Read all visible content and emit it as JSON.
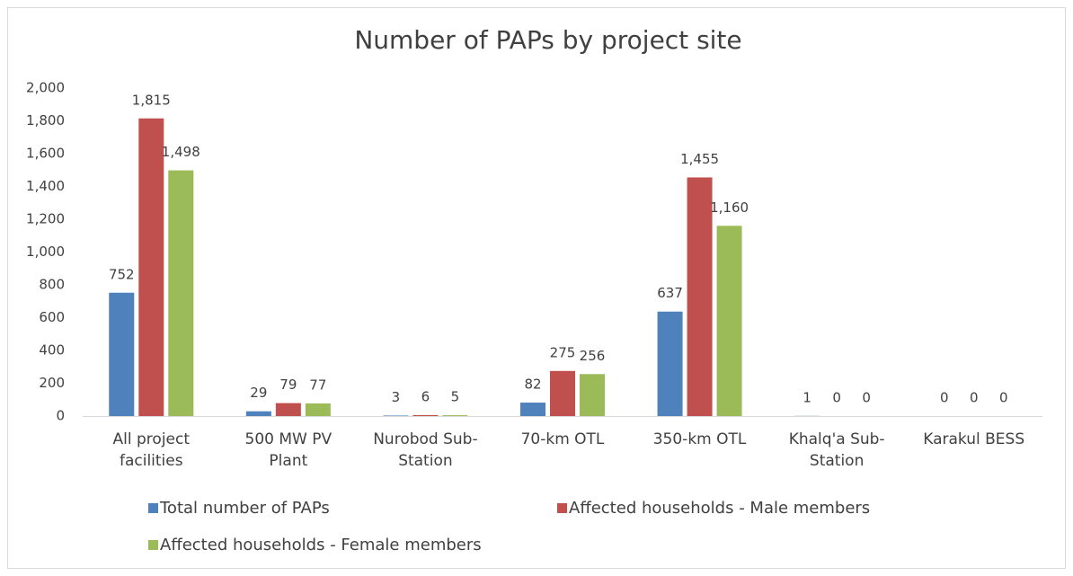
{
  "chart_data": {
    "type": "bar",
    "title": "Number of PAPs by project site",
    "categories": [
      "All project facilities",
      "500 MW PV Plant",
      "Nurobod Sub-Station",
      "70-km OTL",
      "350-km OTL",
      "Khalq'a Sub-Station",
      "Karakul BESS"
    ],
    "series": [
      {
        "name": "Total number of PAPs",
        "color": "#4f81bd",
        "values": [
          752,
          29,
          3,
          82,
          637,
          1,
          0
        ],
        "value_labels": [
          "752",
          "29",
          "3",
          "82",
          "637",
          "1",
          "0"
        ]
      },
      {
        "name": "Affected households - Male members",
        "color": "#c0504d",
        "values": [
          1815,
          79,
          6,
          275,
          1455,
          0,
          0
        ],
        "value_labels": [
          "1,815",
          "79",
          "6",
          "275",
          "1,455",
          "0",
          "0"
        ]
      },
      {
        "name": "Affected households - Female members",
        "color": "#9bbb59",
        "values": [
          1498,
          77,
          5,
          256,
          1160,
          0,
          0
        ],
        "value_labels": [
          "1,498",
          "77",
          "5",
          "256",
          "1,160",
          "0",
          "0"
        ]
      }
    ],
    "ylim": [
      0,
      2000
    ],
    "yticks": [
      0,
      200,
      400,
      600,
      800,
      {
        "value": 1000,
        "label": "1,000"
      },
      {
        "value": 1200,
        "label": "1,200"
      },
      {
        "value": 1400,
        "label": "1,400"
      },
      {
        "value": 1600,
        "label": "1,600"
      },
      {
        "value": 1800,
        "label": "1,800"
      },
      {
        "value": 2000,
        "label": "2,000"
      }
    ],
    "grid": false,
    "legend": "bottom"
  }
}
